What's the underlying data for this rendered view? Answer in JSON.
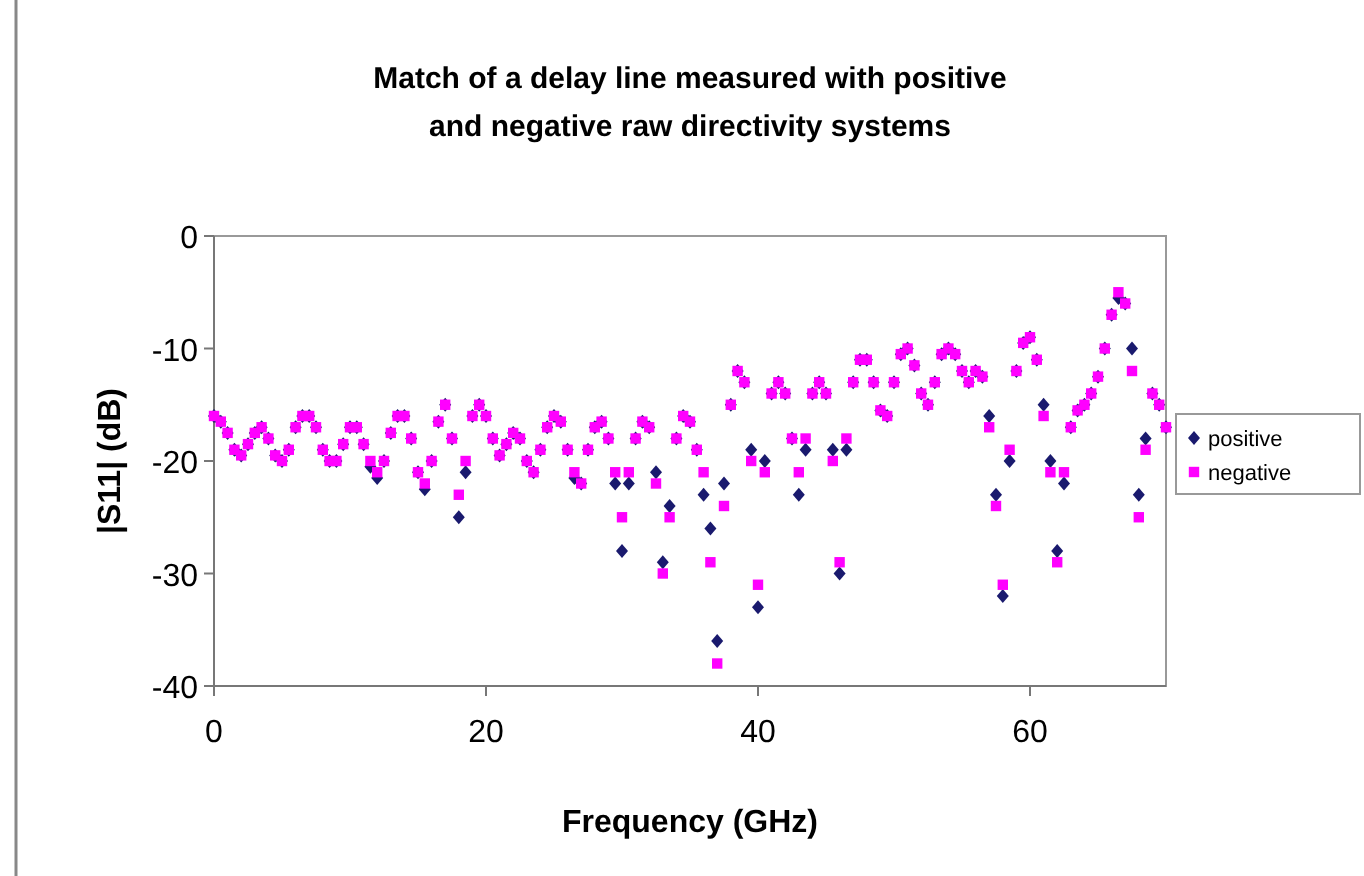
{
  "chart_data": {
    "type": "scatter",
    "title": "Match of a delay line measured with positive and negative raw directivity systems",
    "xlabel": "Frequency (GHz)",
    "ylabel": "|S11| (dB)",
    "x": [
      0,
      0.5,
      1,
      1.5,
      2,
      2.5,
      3,
      3.5,
      4,
      4.5,
      5,
      5.5,
      6,
      6.5,
      7,
      7.5,
      8,
      8.5,
      9,
      9.5,
      10,
      10.5,
      11,
      11.5,
      12,
      12.5,
      13,
      13.5,
      14,
      14.5,
      15,
      15.5,
      16,
      16.5,
      17,
      17.5,
      18,
      18.5,
      19,
      19.5,
      20,
      20.5,
      21,
      21.5,
      22,
      22.5,
      23,
      23.5,
      24,
      24.5,
      25,
      25.5,
      26,
      26.5,
      27,
      27.5,
      28,
      28.5,
      29,
      29.5,
      30,
      30.5,
      31,
      31.5,
      32,
      32.5,
      33,
      33.5,
      34,
      34.5,
      35,
      35.5,
      36,
      36.5,
      37,
      37.5,
      38,
      38.5,
      39,
      39.5,
      40,
      40.5,
      41,
      41.5,
      42,
      42.5,
      43,
      43.5,
      44,
      44.5,
      45,
      45.5,
      46,
      46.5,
      47,
      47.5,
      48,
      48.5,
      49,
      49.5,
      50,
      50.5,
      51,
      51.5,
      52,
      52.5,
      53,
      53.5,
      54,
      54.5,
      55,
      55.5,
      56,
      56.5,
      57,
      57.5,
      58,
      58.5,
      59,
      59.5,
      60,
      60.5,
      61,
      61.5,
      62,
      62.5,
      63,
      63.5,
      64,
      64.5,
      65,
      65.5,
      66,
      66.5,
      67,
      67.5,
      68,
      68.5,
      69,
      69.5,
      70
    ],
    "series": [
      {
        "name": "positive",
        "color": "#1a1a6e",
        "marker": "diamond",
        "values": [
          -16,
          -16.5,
          -17.5,
          -19,
          -19.5,
          -18.5,
          -17.5,
          -17,
          -18,
          -19.5,
          -20,
          -19,
          -17,
          -16,
          -16,
          -17,
          -19,
          -20,
          -20,
          -18.5,
          -17,
          -17,
          -18.5,
          -20.5,
          -21.5,
          -20,
          -17.5,
          -16,
          -16,
          -18,
          -21,
          -22.5,
          -20,
          -16.5,
          -15,
          -18,
          -25,
          -21,
          -16,
          -15,
          -16,
          -18,
          -19.5,
          -18.5,
          -17.5,
          -18,
          -20,
          -21,
          -19,
          -17,
          -16,
          -16.5,
          -19,
          -21.5,
          -22,
          -19,
          -17,
          -16.5,
          -18,
          -22,
          -28,
          -22,
          -18,
          -16.5,
          -17,
          -21,
          -29,
          -24,
          -18,
          -16,
          -16.5,
          -19,
          -23,
          -26,
          -36,
          -22,
          -15,
          -12,
          -13,
          -19,
          -33,
          -20,
          -14,
          -13,
          -14,
          -18,
          -23,
          -19,
          -14,
          -13,
          -14,
          -19,
          -30,
          -19,
          -13,
          -11,
          -11,
          -13,
          -15.5,
          -16,
          -13,
          -10.5,
          -10,
          -11.5,
          -14,
          -15,
          -13,
          -10.5,
          -10,
          -10.5,
          -12,
          -13,
          -12,
          -12.5,
          -16,
          -23,
          -32,
          -20,
          -12,
          -9.5,
          -9,
          -11,
          -15,
          -20,
          -28,
          -22,
          -17,
          -15.5,
          -15,
          -14,
          -12.5,
          -10,
          -7,
          -5.5,
          -6,
          -10,
          -23,
          -18,
          -14,
          -15,
          -17
        ]
      },
      {
        "name": "negative",
        "color": "#ff00ff",
        "marker": "square",
        "values": [
          -16,
          -16.5,
          -17.5,
          -19,
          -19.5,
          -18.5,
          -17.5,
          -17,
          -18,
          -19.5,
          -20,
          -19,
          -17,
          -16,
          -16,
          -17,
          -19,
          -20,
          -20,
          -18.5,
          -17,
          -17,
          -18.5,
          -20,
          -21,
          -20,
          -17.5,
          -16,
          -16,
          -18,
          -21,
          -22,
          -20,
          -16.5,
          -15,
          -18,
          -23,
          -20,
          -16,
          -15,
          -16,
          -18,
          -19.5,
          -18.5,
          -17.5,
          -18,
          -20,
          -21,
          -19,
          -17,
          -16,
          -16.5,
          -19,
          -21,
          -22,
          -19,
          -17,
          -16.5,
          -18,
          -21,
          -25,
          -21,
          -18,
          -16.5,
          -17,
          -22,
          -30,
          -25,
          -18,
          -16,
          -16.5,
          -19,
          -21,
          -29,
          -38,
          -24,
          -15,
          -12,
          -13,
          -20,
          -31,
          -21,
          -14,
          -13,
          -14,
          -18,
          -21,
          -18,
          -14,
          -13,
          -14,
          -20,
          -29,
          -18,
          -13,
          -11,
          -11,
          -13,
          -15.5,
          -16,
          -13,
          -10.5,
          -10,
          -11.5,
          -14,
          -15,
          -13,
          -10.5,
          -10,
          -10.5,
          -12,
          -13,
          -12,
          -12.5,
          -17,
          -24,
          -31,
          -19,
          -12,
          -9.5,
          -9,
          -11,
          -16,
          -21,
          -29,
          -21,
          -17,
          -15.5,
          -15,
          -14,
          -12.5,
          -10,
          -7,
          -5,
          -6,
          -12,
          -25,
          -19,
          -14,
          -15,
          -17
        ]
      }
    ],
    "xlim": [
      0,
      70
    ],
    "xticks": [
      0,
      20,
      40,
      60
    ],
    "ylim": [
      -40,
      0
    ],
    "yticks": [
      -40,
      -30,
      -20,
      -10,
      0
    ],
    "grid": false,
    "legend": "right"
  }
}
